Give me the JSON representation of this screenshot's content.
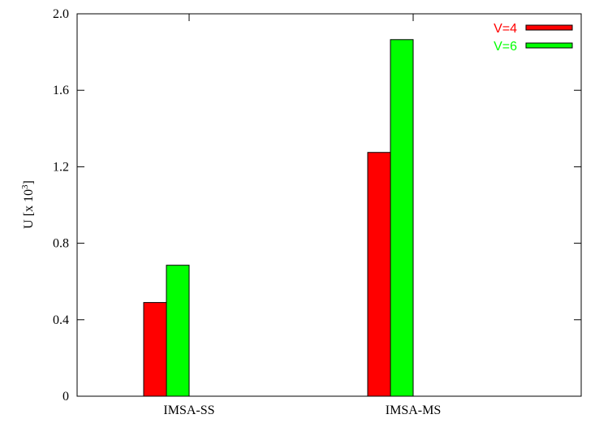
{
  "chart_data": {
    "type": "bar",
    "title": "",
    "xlabel": "",
    "ylabel": "U  [x 10",
    "ylabel_superscript": "3",
    "ylabel_suffix": "]",
    "ylim": [
      0,
      2.0
    ],
    "yticks": [
      0,
      0.4,
      0.8,
      1.2,
      1.6,
      2.0
    ],
    "ytick_labels": [
      "0",
      "0.4",
      "0.8",
      "1.2",
      "1.6",
      "2.0"
    ],
    "categories": [
      "IMSA-SS",
      "IMSA-MS"
    ],
    "series": [
      {
        "name": "V=4",
        "color": "#ff0000",
        "values": [
          0.49,
          1.275
        ]
      },
      {
        "name": "V=6",
        "color": "#00ff00",
        "values": [
          0.685,
          1.865
        ]
      }
    ],
    "legend_position": "top-right",
    "grid": false
  }
}
